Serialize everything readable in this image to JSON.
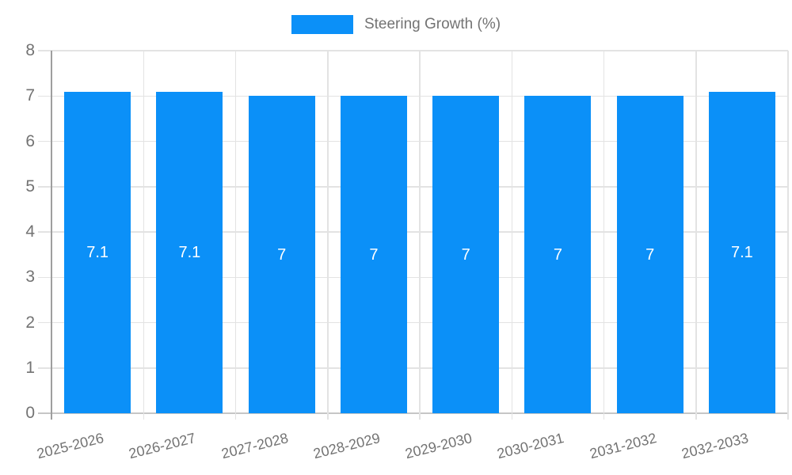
{
  "chart_data": {
    "type": "bar",
    "title": "",
    "legend": {
      "label": "Steering Growth (%)",
      "position": "top"
    },
    "categories": [
      "2025-2026",
      "2026-2027",
      "2027-2028",
      "2028-2029",
      "2029-2030",
      "2030-2031",
      "2031-2032",
      "2032-2033"
    ],
    "series": [
      {
        "name": "Steering Growth (%)",
        "values": [
          7.1,
          7.1,
          7,
          7,
          7,
          7,
          7,
          7.1
        ]
      }
    ],
    "bar_value_labels": [
      "7.1",
      "7.1",
      "7",
      "7",
      "7",
      "7",
      "7",
      "7.1"
    ],
    "xlabel": "",
    "ylabel": "",
    "ylim": [
      0,
      8
    ],
    "yticks": [
      0,
      1,
      2,
      3,
      4,
      5,
      6,
      7,
      8
    ],
    "grid": true,
    "colors": {
      "bar": "#0b90f8",
      "bar_label_text": "#ffffff",
      "axis_text": "#737373",
      "grid_line": "#e3e3e3",
      "zero_line": "#c6c6c6",
      "axis_line": "#9e9e9e",
      "background": "#ffffff"
    }
  }
}
